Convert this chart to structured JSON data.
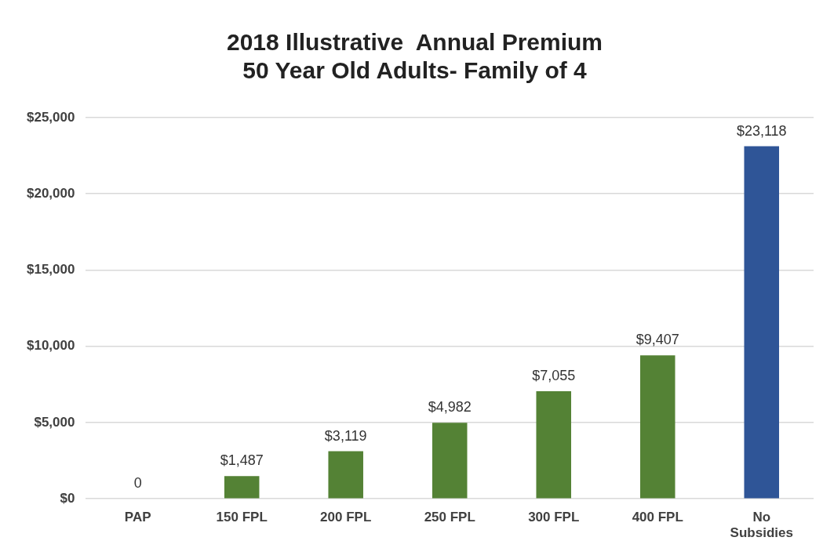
{
  "chart_data": {
    "type": "bar",
    "title": [
      "2018 Illustrative  Annual Premium",
      "50 Year Old Adults- Family of 4"
    ],
    "categories": [
      "PAP",
      "150 FPL",
      "200 FPL",
      "250 FPL",
      "300 FPL",
      "400 FPL",
      "No Subsidies"
    ],
    "values": [
      0,
      1487,
      3119,
      4982,
      7055,
      9407,
      23118
    ],
    "colors": [
      "#548235",
      "#548235",
      "#548235",
      "#548235",
      "#548235",
      "#548235",
      "#2f5597"
    ],
    "value_labels": [
      "0",
      "$1,487",
      "$3,119",
      "$4,982",
      "$7,055",
      "$9,407",
      "$23,118"
    ],
    "ylim": [
      0,
      25000
    ],
    "yticks": [
      {
        "value": 0,
        "label": "$0"
      },
      {
        "value": 5000,
        "label": "$5,000"
      },
      {
        "value": 10000,
        "label": "$10,000"
      },
      {
        "value": 15000,
        "label": "$15,000"
      },
      {
        "value": 20000,
        "label": "$20,000"
      },
      {
        "value": 25000,
        "label": "$25,000"
      }
    ],
    "grid": "y",
    "legend": false
  }
}
